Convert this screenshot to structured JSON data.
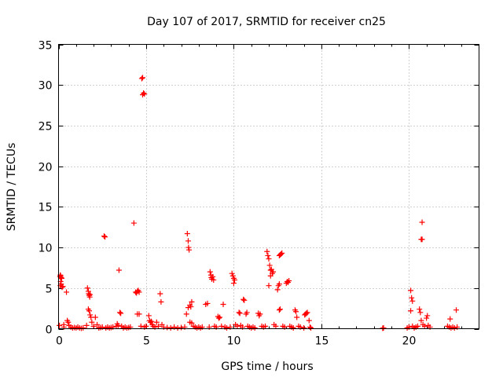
{
  "chart_data": {
    "type": "scatter",
    "title": "Day 107 of 2017, SRMTID for receiver cn25",
    "xlabel": "GPS time / hours",
    "ylabel": "SRMTID / TECUs",
    "xlim": [
      0,
      24
    ],
    "ylim": [
      0,
      35
    ],
    "xticks": [
      0,
      5,
      10,
      15,
      20
    ],
    "yticks": [
      0,
      5,
      10,
      15,
      20,
      25,
      30,
      35
    ],
    "xtick_labels": [
      "0",
      "5",
      "10",
      "15",
      "20"
    ],
    "ytick_labels": [
      "0",
      "5",
      "10",
      "15",
      "20",
      "25",
      "30",
      "35"
    ],
    "grid": true,
    "marker": "+",
    "color": "#ff0000",
    "series": [
      {
        "name": "SRMTID",
        "points": [
          [
            0.05,
            0.4
          ],
          [
            0.08,
            6.4
          ],
          [
            0.1,
            6.6
          ],
          [
            0.12,
            6.5
          ],
          [
            0.15,
            6.3
          ],
          [
            0.18,
            6.2
          ],
          [
            0.12,
            5.8
          ],
          [
            0.15,
            5.5
          ],
          [
            0.1,
            5.3
          ],
          [
            0.2,
            5.1
          ],
          [
            0.25,
            5.2
          ],
          [
            0.3,
            0.5
          ],
          [
            0.3,
            0.2
          ],
          [
            0.45,
            4.5
          ],
          [
            0.5,
            1.0
          ],
          [
            0.55,
            0.8
          ],
          [
            0.6,
            0.4
          ],
          [
            0.7,
            0.2
          ],
          [
            0.8,
            0.1
          ],
          [
            0.9,
            0.15
          ],
          [
            1.0,
            0.1
          ],
          [
            1.1,
            0.2
          ],
          [
            1.2,
            0.1
          ],
          [
            1.3,
            0.05
          ],
          [
            1.4,
            0.1
          ],
          [
            1.6,
            0.4
          ],
          [
            1.65,
            5.0
          ],
          [
            1.7,
            4.6
          ],
          [
            1.72,
            4.3
          ],
          [
            1.75,
            4.1
          ],
          [
            1.78,
            3.9
          ],
          [
            1.8,
            4.2
          ],
          [
            1.7,
            2.4
          ],
          [
            1.75,
            2.2
          ],
          [
            1.8,
            1.7
          ],
          [
            1.85,
            1.4
          ],
          [
            1.9,
            0.8
          ],
          [
            2.0,
            0.3
          ],
          [
            2.1,
            1.4
          ],
          [
            2.2,
            0.5
          ],
          [
            2.3,
            0.1
          ],
          [
            2.4,
            0.15
          ],
          [
            2.6,
            11.4
          ],
          [
            2.65,
            11.3
          ],
          [
            2.5,
            0.2
          ],
          [
            2.7,
            0.1
          ],
          [
            2.8,
            0.2
          ],
          [
            2.9,
            0.1
          ],
          [
            3.0,
            0.15
          ],
          [
            3.1,
            0.2
          ],
          [
            3.3,
            0.3
          ],
          [
            3.35,
            0.6
          ],
          [
            3.4,
            0.4
          ],
          [
            3.45,
            7.2
          ],
          [
            3.5,
            2.0
          ],
          [
            3.55,
            1.9
          ],
          [
            3.6,
            0.3
          ],
          [
            3.7,
            0.1
          ],
          [
            3.8,
            0.2
          ],
          [
            3.9,
            0.1
          ],
          [
            4.0,
            0.15
          ],
          [
            4.1,
            0.2
          ],
          [
            4.3,
            13.0
          ],
          [
            4.4,
            4.5
          ],
          [
            4.45,
            4.4
          ],
          [
            4.5,
            4.6
          ],
          [
            4.55,
            4.7
          ],
          [
            4.6,
            4.5
          ],
          [
            4.5,
            1.8
          ],
          [
            4.6,
            1.8
          ],
          [
            4.7,
            0.3
          ],
          [
            4.75,
            30.8
          ],
          [
            4.8,
            30.9
          ],
          [
            4.8,
            28.8
          ],
          [
            4.85,
            29.0
          ],
          [
            4.9,
            28.9
          ],
          [
            4.9,
            0.2
          ],
          [
            5.0,
            0.3
          ],
          [
            5.15,
            1.6
          ],
          [
            5.2,
            1.0
          ],
          [
            5.25,
            0.8
          ],
          [
            5.3,
            0.9
          ],
          [
            5.35,
            0.5
          ],
          [
            5.4,
            0.3
          ],
          [
            5.5,
            0.2
          ],
          [
            5.6,
            0.8
          ],
          [
            5.7,
            0.3
          ],
          [
            5.8,
            4.3
          ],
          [
            5.85,
            3.3
          ],
          [
            5.9,
            0.5
          ],
          [
            6.0,
            0.2
          ],
          [
            6.2,
            0.15
          ],
          [
            6.4,
            0.1
          ],
          [
            6.6,
            0.2
          ],
          [
            6.8,
            0.1
          ],
          [
            7.0,
            0.15
          ],
          [
            7.2,
            0.2
          ],
          [
            7.35,
            11.7
          ],
          [
            7.4,
            10.8
          ],
          [
            7.42,
            10.0
          ],
          [
            7.45,
            9.7
          ],
          [
            7.3,
            1.8
          ],
          [
            7.4,
            2.6
          ],
          [
            7.5,
            2.9
          ],
          [
            7.55,
            2.7
          ],
          [
            7.6,
            3.3
          ],
          [
            7.5,
            0.8
          ],
          [
            7.6,
            0.7
          ],
          [
            7.7,
            0.3
          ],
          [
            7.8,
            0.2
          ],
          [
            7.9,
            0.1
          ],
          [
            8.0,
            0.2
          ],
          [
            8.1,
            0.1
          ],
          [
            8.2,
            0.2
          ],
          [
            8.4,
            3.0
          ],
          [
            8.5,
            3.1
          ],
          [
            8.6,
            0.2
          ],
          [
            8.65,
            7.0
          ],
          [
            8.7,
            6.6
          ],
          [
            8.72,
            6.3
          ],
          [
            8.75,
            6.1
          ],
          [
            8.8,
            6.4
          ],
          [
            8.85,
            6.0
          ],
          [
            8.9,
            0.3
          ],
          [
            9.0,
            0.2
          ],
          [
            9.1,
            1.5
          ],
          [
            9.15,
            1.3
          ],
          [
            9.2,
            1.4
          ],
          [
            9.3,
            0.3
          ],
          [
            9.4,
            3.0
          ],
          [
            9.5,
            0.2
          ],
          [
            9.6,
            0.1
          ],
          [
            9.8,
            0.2
          ],
          [
            9.9,
            6.8
          ],
          [
            9.95,
            6.5
          ],
          [
            10.0,
            6.2
          ],
          [
            10.05,
            6.0
          ],
          [
            10.0,
            5.6
          ],
          [
            10.1,
            0.5
          ],
          [
            10.2,
            0.3
          ],
          [
            10.3,
            2.0
          ],
          [
            10.35,
            1.9
          ],
          [
            10.4,
            0.4
          ],
          [
            10.5,
            0.2
          ],
          [
            10.55,
            3.6
          ],
          [
            10.6,
            3.5
          ],
          [
            10.7,
            1.8
          ],
          [
            10.75,
            2.0
          ],
          [
            10.8,
            0.3
          ],
          [
            10.9,
            0.2
          ],
          [
            11.0,
            0.1
          ],
          [
            11.1,
            0.2
          ],
          [
            11.2,
            0.1
          ],
          [
            11.4,
            1.9
          ],
          [
            11.45,
            1.6
          ],
          [
            11.5,
            1.8
          ],
          [
            11.6,
            0.3
          ],
          [
            11.7,
            0.2
          ],
          [
            11.8,
            0.3
          ],
          [
            11.9,
            9.5
          ],
          [
            11.95,
            9.0
          ],
          [
            12.0,
            8.6
          ],
          [
            12.05,
            7.8
          ],
          [
            12.1,
            7.2
          ],
          [
            12.15,
            7.3
          ],
          [
            12.2,
            6.8
          ],
          [
            12.1,
            6.5
          ],
          [
            12.0,
            5.3
          ],
          [
            12.25,
            7.0
          ],
          [
            12.3,
            0.5
          ],
          [
            12.4,
            0.3
          ],
          [
            12.5,
            4.8
          ],
          [
            12.55,
            5.3
          ],
          [
            12.6,
            5.5
          ],
          [
            12.6,
            2.3
          ],
          [
            12.65,
            2.4
          ],
          [
            12.6,
            9.0
          ],
          [
            12.65,
            9.1
          ],
          [
            12.7,
            9.2
          ],
          [
            12.75,
            9.3
          ],
          [
            12.8,
            0.3
          ],
          [
            12.9,
            0.2
          ],
          [
            13.0,
            5.6
          ],
          [
            13.05,
            5.8
          ],
          [
            13.1,
            5.7
          ],
          [
            13.15,
            5.9
          ],
          [
            13.2,
            0.3
          ],
          [
            13.3,
            0.2
          ],
          [
            13.4,
            0.1
          ],
          [
            13.5,
            2.3
          ],
          [
            13.55,
            2.1
          ],
          [
            13.6,
            1.4
          ],
          [
            13.7,
            0.3
          ],
          [
            13.8,
            0.2
          ],
          [
            14.0,
            0.1
          ],
          [
            14.05,
            1.7
          ],
          [
            14.1,
            1.8
          ],
          [
            14.15,
            1.9
          ],
          [
            14.2,
            2.0
          ],
          [
            14.3,
            1.0
          ],
          [
            14.35,
            0.2
          ],
          [
            14.4,
            0.1
          ],
          [
            18.5,
            0.05
          ],
          [
            18.55,
            0.1
          ],
          [
            19.9,
            0.1
          ],
          [
            20.0,
            0.2
          ],
          [
            20.1,
            4.7
          ],
          [
            20.15,
            3.8
          ],
          [
            20.2,
            3.4
          ],
          [
            20.1,
            2.2
          ],
          [
            20.2,
            0.3
          ],
          [
            20.3,
            0.1
          ],
          [
            20.4,
            0.2
          ],
          [
            20.5,
            0.3
          ],
          [
            20.6,
            2.4
          ],
          [
            20.65,
            2.0
          ],
          [
            20.7,
            1.0
          ],
          [
            20.7,
            11.0
          ],
          [
            20.75,
            11.0
          ],
          [
            20.75,
            13.1
          ],
          [
            20.8,
            0.5
          ],
          [
            20.9,
            0.3
          ],
          [
            21.0,
            1.3
          ],
          [
            21.05,
            1.6
          ],
          [
            21.1,
            0.4
          ],
          [
            21.2,
            0.2
          ],
          [
            22.2,
            0.3
          ],
          [
            22.3,
            0.2
          ],
          [
            22.35,
            1.2
          ],
          [
            22.4,
            0.1
          ],
          [
            22.5,
            0.2
          ],
          [
            22.6,
            0.1
          ],
          [
            22.7,
            2.3
          ],
          [
            22.75,
            0.2
          ]
        ]
      }
    ]
  }
}
